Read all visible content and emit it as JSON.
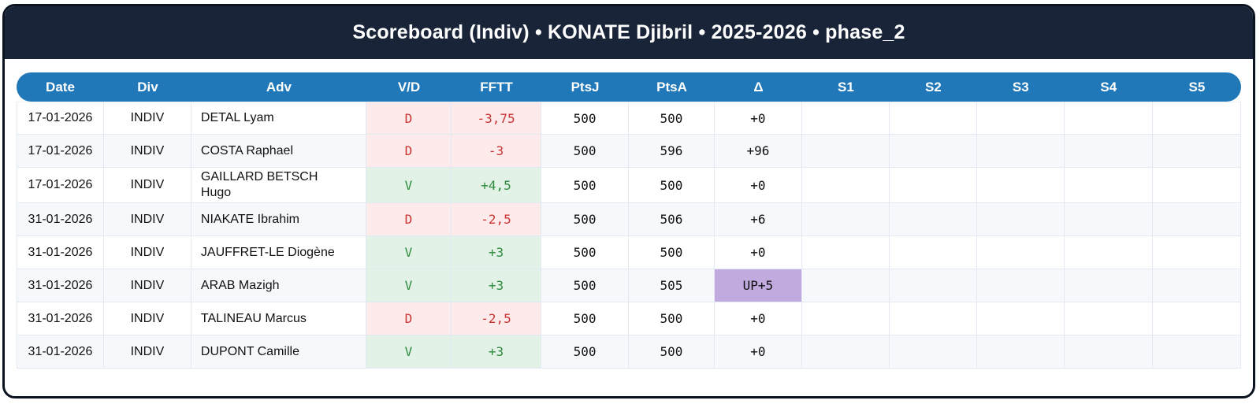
{
  "title": "Scoreboard (Indiv) • KONATE Djibril • 2025-2026 • phase_2",
  "colors": {
    "navy": "#1a2438",
    "frame_border": "#0c1320",
    "header_blue": "#2178b8",
    "win_bg": "#e3f2e7",
    "win_text": "#2e8b3e",
    "loss_bg": "#fcebea",
    "loss_text": "#cc3434",
    "promo_bg": "#c0aade",
    "row_alt": "#f6f8fc"
  },
  "table": {
    "columns": [
      "Date",
      "Div",
      "Adv",
      "V/D",
      "FFTT",
      "PtsJ",
      "PtsA",
      "Δ",
      "S1",
      "S2",
      "S3",
      "S4",
      "S5"
    ],
    "column_widths_pct": [
      7.14,
      7.14,
      14.29,
      6.95,
      7.34,
      7.14,
      7.01,
      7.14,
      7.14,
      7.14,
      7.14,
      7.21,
      7.21
    ],
    "rows": [
      {
        "date": "17-01-2026",
        "div": "INDIV",
        "adv": "DETAL Lyam",
        "vd": "D",
        "fftt": "-3,75",
        "ptsj": "500",
        "ptsa": "500",
        "delta": "+0",
        "s1": "",
        "s2": "",
        "s3": "",
        "s4": "",
        "s5": ""
      },
      {
        "date": "17-01-2026",
        "div": "INDIV",
        "adv": "COSTA Raphael",
        "vd": "D",
        "fftt": "-3",
        "ptsj": "500",
        "ptsa": "596",
        "delta": "+96",
        "s1": "",
        "s2": "",
        "s3": "",
        "s4": "",
        "s5": ""
      },
      {
        "date": "17-01-2026",
        "div": "INDIV",
        "adv": "GAILLARD BETSCH Hugo",
        "vd": "V",
        "fftt": "+4,5",
        "ptsj": "500",
        "ptsa": "500",
        "delta": "+0",
        "s1": "",
        "s2": "",
        "s3": "",
        "s4": "",
        "s5": ""
      },
      {
        "date": "31-01-2026",
        "div": "INDIV",
        "adv": "NIAKATE Ibrahim",
        "vd": "D",
        "fftt": "-2,5",
        "ptsj": "500",
        "ptsa": "506",
        "delta": "+6",
        "s1": "",
        "s2": "",
        "s3": "",
        "s4": "",
        "s5": ""
      },
      {
        "date": "31-01-2026",
        "div": "INDIV",
        "adv": "JAUFFRET-LE Diogène",
        "vd": "V",
        "fftt": "+3",
        "ptsj": "500",
        "ptsa": "500",
        "delta": "+0",
        "s1": "",
        "s2": "",
        "s3": "",
        "s4": "",
        "s5": ""
      },
      {
        "date": "31-01-2026",
        "div": "INDIV",
        "adv": "ARAB Mazigh",
        "vd": "V",
        "fftt": "+3",
        "ptsj": "500",
        "ptsa": "505",
        "delta": "UP+5",
        "s1": "",
        "s2": "",
        "s3": "",
        "s4": "",
        "s5": ""
      },
      {
        "date": "31-01-2026",
        "div": "INDIV",
        "adv": "TALINEAU Marcus",
        "vd": "D",
        "fftt": "-2,5",
        "ptsj": "500",
        "ptsa": "500",
        "delta": "+0",
        "s1": "",
        "s2": "",
        "s3": "",
        "s4": "",
        "s5": ""
      },
      {
        "date": "31-01-2026",
        "div": "INDIV",
        "adv": "DUPONT Camille",
        "vd": "V",
        "fftt": "+3",
        "ptsj": "500",
        "ptsa": "500",
        "delta": "+0",
        "s1": "",
        "s2": "",
        "s3": "",
        "s4": "",
        "s5": ""
      }
    ]
  }
}
